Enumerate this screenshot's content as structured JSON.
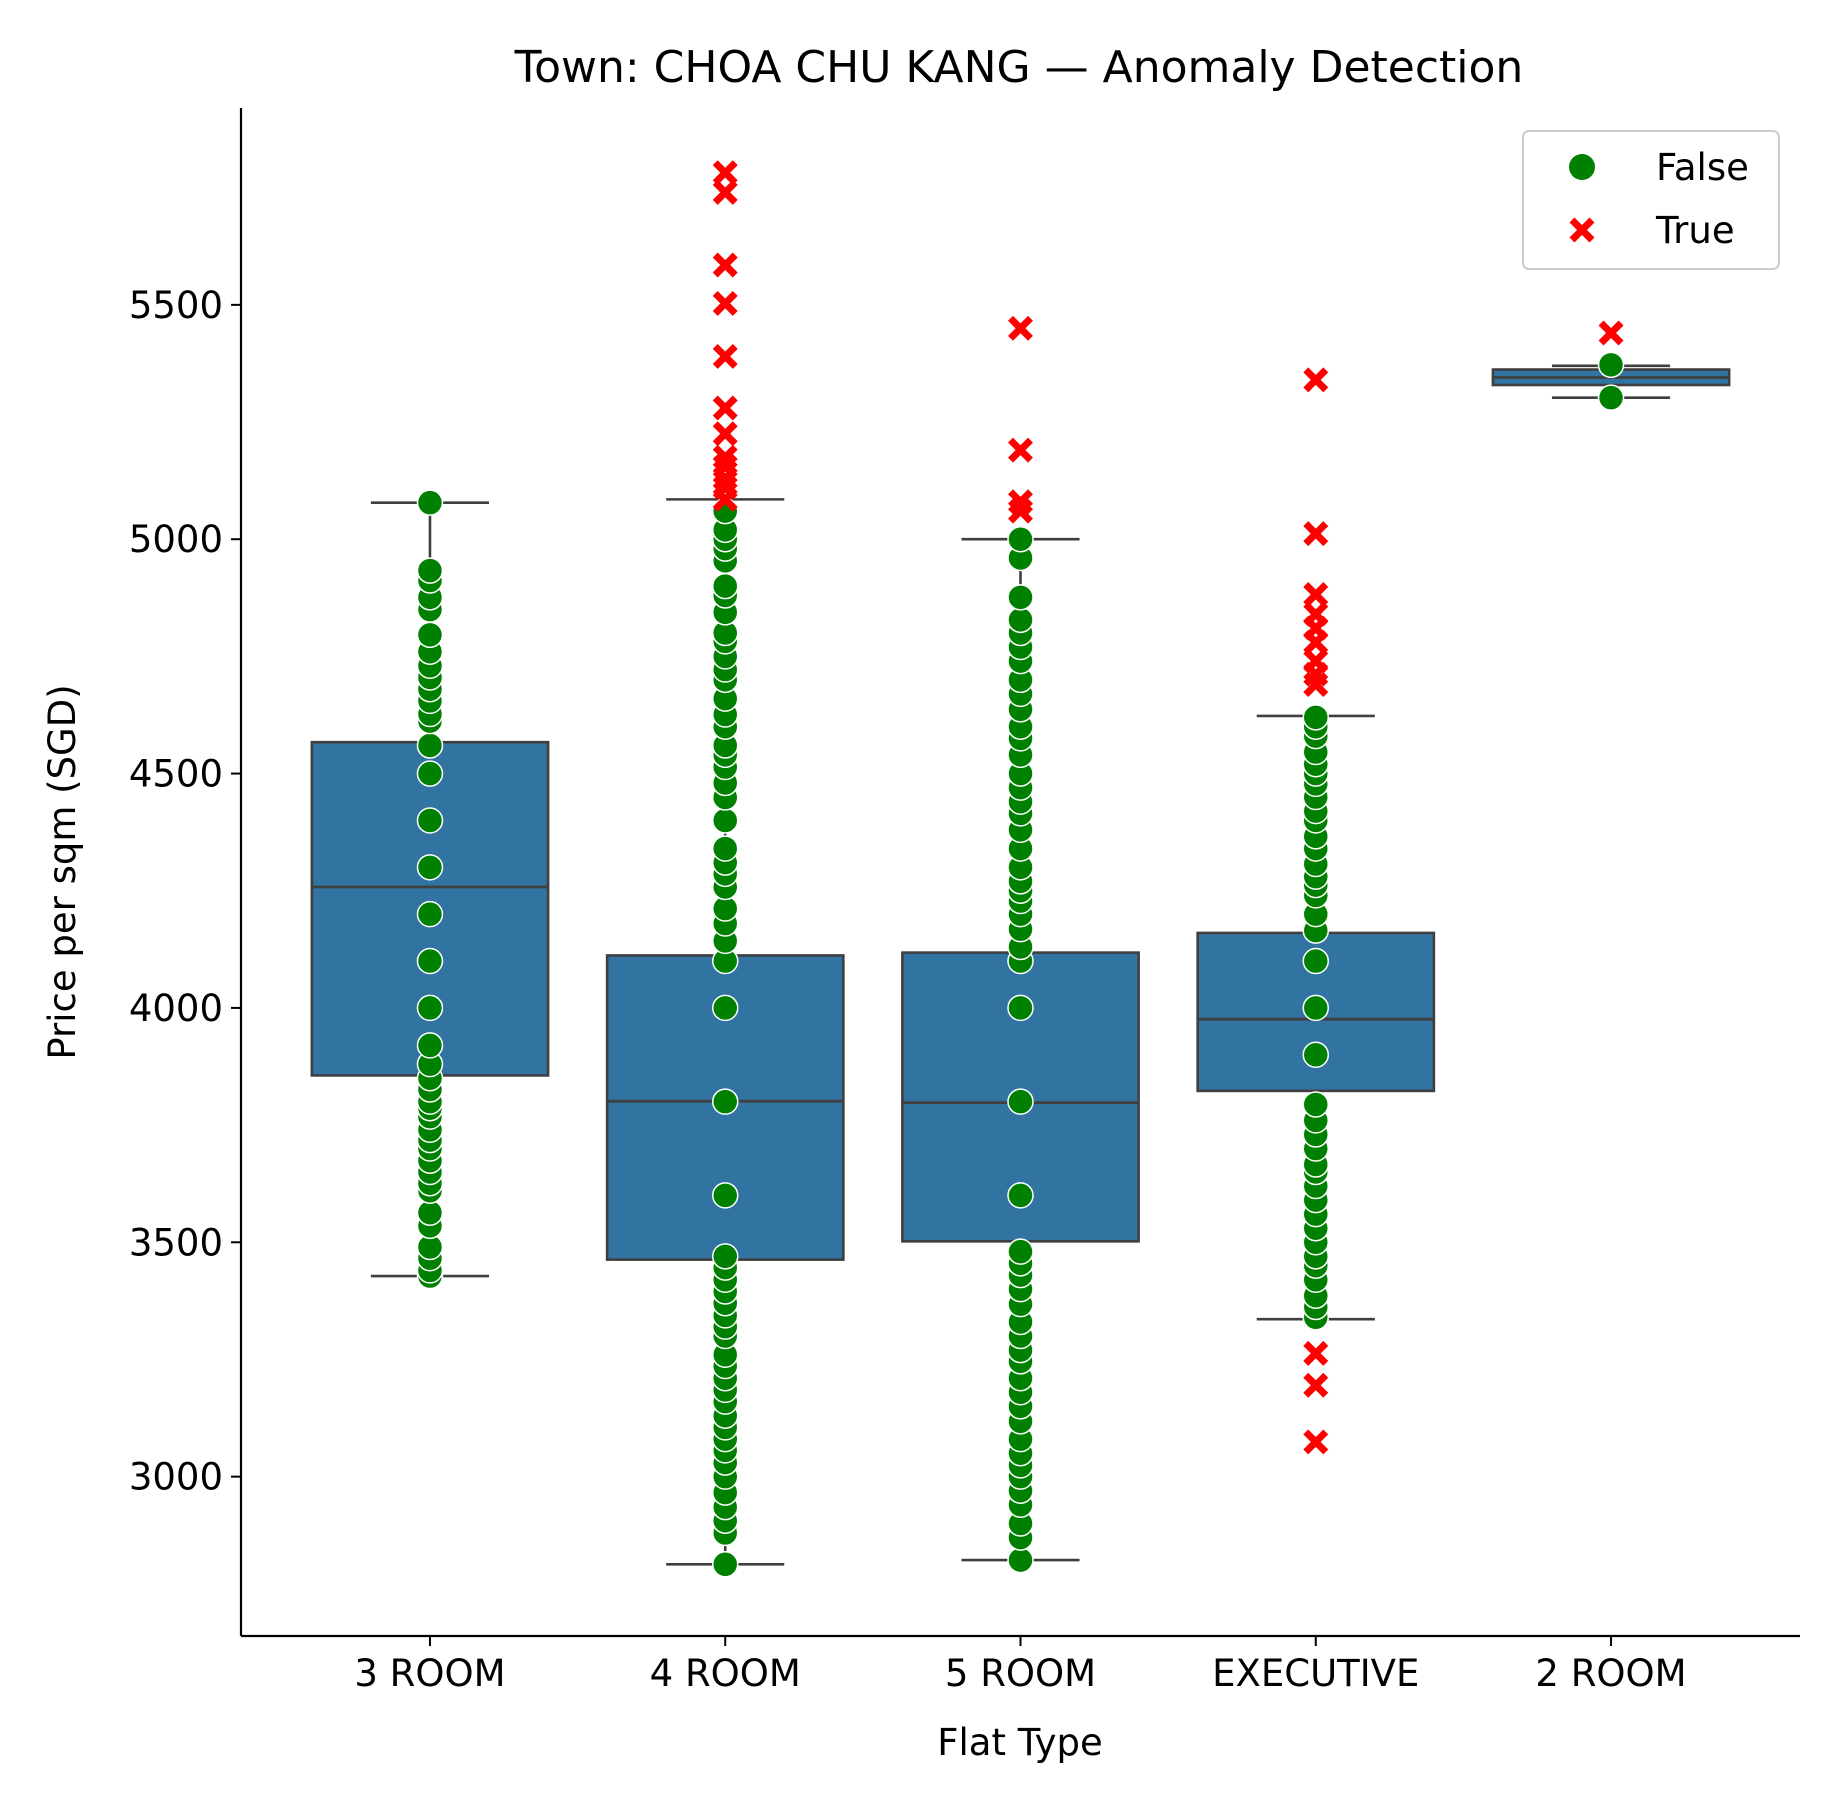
{
  "chart_data": {
    "type": "box",
    "title": "Town: CHOA CHU KANG — Anomaly Detection",
    "xlabel": "Flat Type",
    "ylabel": "Price per sqm (SGD)",
    "ylim": [
      2660,
      5920
    ],
    "yticks": [
      3000,
      3500,
      4000,
      4500,
      5000,
      5500
    ],
    "grid": false,
    "legend": {
      "placement": "top-right",
      "entries": [
        {
          "label": "False",
          "color": "#008000",
          "marker": "circle"
        },
        {
          "label": "True",
          "color": "#ff0000",
          "marker": "x"
        }
      ]
    },
    "colors": {
      "box_fill": "#3274a1",
      "box_edge": "#3f3f3f",
      "normal": "#008000",
      "anomaly": "#ff0000"
    },
    "categories": [
      "3 ROOM",
      "4 ROOM",
      "5 ROOM",
      "EXECUTIVE",
      "2 ROOM"
    ],
    "boxes": [
      {
        "category": "3 ROOM",
        "whislo": 3428,
        "q1": 3856,
        "med": 4258,
        "q3": 4567,
        "whishi": 5078
      },
      {
        "category": "4 ROOM",
        "whislo": 2813,
        "q1": 3463,
        "med": 3801,
        "q3": 4112,
        "whishi": 5085
      },
      {
        "category": "5 ROOM",
        "whislo": 2822,
        "q1": 3502,
        "med": 3798,
        "q3": 4118,
        "whishi": 5000
      },
      {
        "category": "EXECUTIVE",
        "whislo": 3336,
        "q1": 3823,
        "med": 3976,
        "q3": 4160,
        "whishi": 4623
      },
      {
        "category": "2 ROOM",
        "whislo": 5302,
        "q1": 5329,
        "med": 5345,
        "q3": 5362,
        "whishi": 5370
      }
    ],
    "points": {
      "normal": [
        {
          "category": "3 ROOM",
          "values": [
            3428,
            3440,
            3466,
            3490,
            3535,
            3563,
            3610,
            3626,
            3650,
            3674,
            3700,
            3718,
            3740,
            3768,
            3786,
            3800,
            3826,
            3850,
            3880,
            3920,
            4000,
            4100,
            4200,
            4300,
            4400,
            4500,
            4560,
            4612,
            4627,
            4655,
            4680,
            4705,
            4730,
            4760,
            4796,
            4850,
            4876,
            4912,
            4933,
            5078
          ]
        },
        {
          "category": "4 ROOM",
          "values": [
            2813,
            2880,
            2906,
            2935,
            2966,
            3000,
            3030,
            3056,
            3080,
            3105,
            3130,
            3160,
            3185,
            3210,
            3236,
            3260,
            3300,
            3320,
            3344,
            3370,
            3395,
            3420,
            3446,
            3470,
            3600,
            3800,
            4000,
            4100,
            4143,
            4180,
            4212,
            4258,
            4286,
            4310,
            4340,
            4400,
            4449,
            4480,
            4514,
            4540,
            4560,
            4600,
            4626,
            4660,
            4700,
            4722,
            4750,
            4782,
            4800,
            4844,
            4880,
            4900,
            4954,
            4980,
            5000,
            5020,
            5060
          ]
        },
        {
          "category": "5 ROOM",
          "values": [
            2822,
            2870,
            2900,
            2940,
            2970,
            3000,
            3024,
            3050,
            3080,
            3118,
            3150,
            3180,
            3210,
            3246,
            3270,
            3300,
            3330,
            3368,
            3400,
            3430,
            3455,
            3480,
            3600,
            3800,
            4000,
            4100,
            4130,
            4168,
            4200,
            4228,
            4250,
            4270,
            4300,
            4340,
            4380,
            4415,
            4440,
            4470,
            4500,
            4540,
            4575,
            4600,
            4637,
            4670,
            4700,
            4740,
            4770,
            4800,
            4828,
            4876,
            4960,
            5000
          ]
        },
        {
          "category": "EXECUTIVE",
          "values": [
            3340,
            3362,
            3386,
            3420,
            3450,
            3470,
            3500,
            3530,
            3560,
            3590,
            3620,
            3650,
            3666,
            3700,
            3730,
            3760,
            3794,
            3900,
            4000,
            4100,
            4165,
            4200,
            4240,
            4262,
            4280,
            4307,
            4340,
            4366,
            4400,
            4420,
            4450,
            4478,
            4500,
            4520,
            4546,
            4580,
            4600,
            4620
          ]
        },
        {
          "category": "2 ROOM",
          "values": [
            5302,
            5372
          ]
        }
      ],
      "anomaly": [
        {
          "category": "4 ROOM",
          "values": [
            5085,
            5110,
            5130,
            5155,
            5175,
            5225,
            5280,
            5390,
            5503,
            5585,
            5740,
            5782
          ]
        },
        {
          "category": "5 ROOM",
          "values": [
            5060,
            5080,
            5190,
            5450
          ]
        },
        {
          "category": "EXECUTIVE",
          "values": [
            3074,
            3195,
            3263,
            4690,
            4712,
            4740,
            4780,
            4810,
            4840,
            4882,
            5012,
            5340
          ]
        },
        {
          "category": "2 ROOM",
          "values": [
            5440
          ]
        }
      ]
    }
  }
}
